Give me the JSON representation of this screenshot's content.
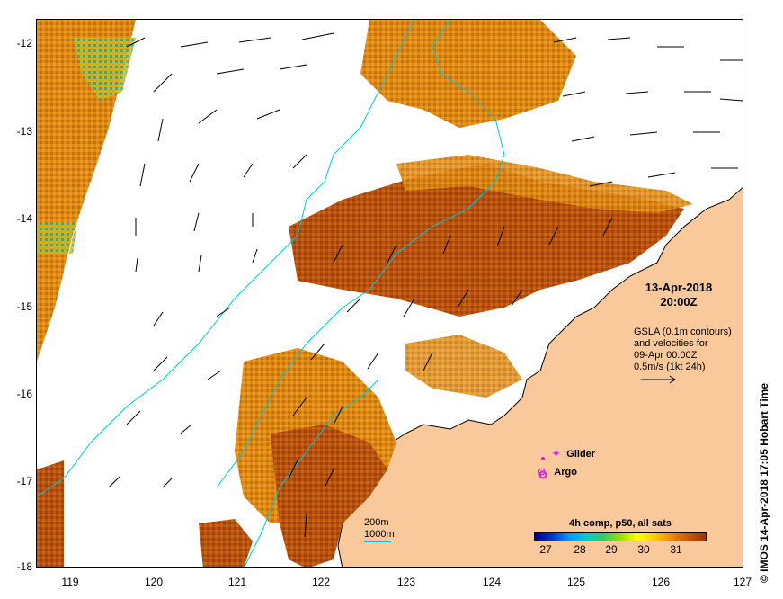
{
  "map": {
    "x_ticks": [
      "119",
      "120",
      "121",
      "122",
      "123",
      "124",
      "125",
      "126",
      "127"
    ],
    "y_ticks": [
      "-12",
      "-13",
      "-14",
      "-15",
      "-16",
      "-17",
      "-18"
    ],
    "lon_range": [
      118.6,
      127
    ],
    "lat_range": [
      -18,
      -11.75
    ],
    "colors": {
      "land": "#f9c89b",
      "coast": "#000000",
      "depth_contour": "#00c8d8",
      "no_data": "#ffffff"
    }
  },
  "annotations": {
    "date": "13-Apr-2018",
    "time": "20:00Z",
    "gsla_line1": "GSLA (0.1m contours)",
    "gsla_line2": "and velocities for",
    "gsla_line3": "09-Apr 00:00Z",
    "gsla_line4": "0.5m/s (1kt 24h)"
  },
  "legend": {
    "glider_label": "Glider",
    "argo_label": "Argo",
    "glider_color": "#e020e0",
    "argo_color": "#e020e0"
  },
  "colorbar": {
    "title": "4h comp, p50, all sats",
    "ticks": [
      "27",
      "28",
      "29",
      "30",
      "31"
    ]
  },
  "depth_legend": {
    "line1": "200m",
    "line2": "1000m"
  },
  "credit": "© IMOS 14-Apr-2018 17:05 Hobart Time"
}
